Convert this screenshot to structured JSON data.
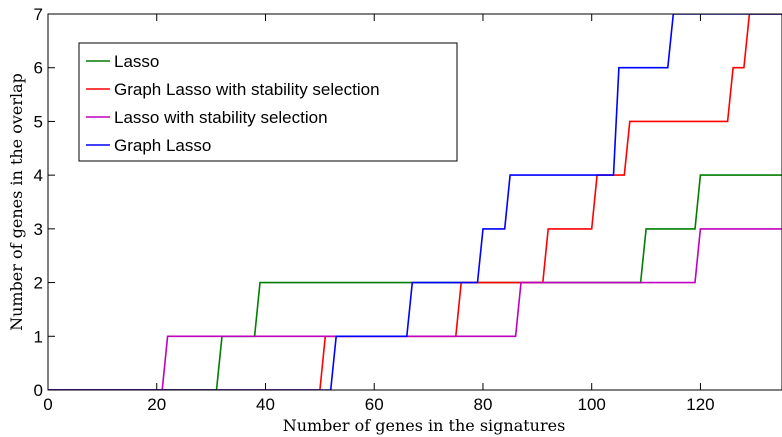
{
  "chart_data": {
    "type": "line",
    "title": "",
    "xlabel": "Number of genes in the signatures",
    "ylabel": "Number of genes in the overlap",
    "xlim": [
      0,
      135
    ],
    "ylim": [
      0,
      7
    ],
    "xticks": [
      0,
      20,
      40,
      60,
      80,
      100,
      120
    ],
    "yticks": [
      0,
      1,
      2,
      3,
      4,
      5,
      6,
      7
    ],
    "grid": false,
    "legend_position": "top-left",
    "series": [
      {
        "name": "Lasso",
        "color": "#007f00",
        "step": true,
        "points": [
          [
            0,
            0
          ],
          [
            31,
            0
          ],
          [
            32,
            1
          ],
          [
            38,
            1
          ],
          [
            39,
            2
          ],
          [
            109,
            2
          ],
          [
            110,
            3
          ],
          [
            119,
            3
          ],
          [
            120,
            4
          ],
          [
            135,
            4
          ]
        ]
      },
      {
        "name": "Graph Lasso with stability selection",
        "color": "#ff0000",
        "step": true,
        "points": [
          [
            0,
            0
          ],
          [
            50,
            0
          ],
          [
            51,
            1
          ],
          [
            75,
            1
          ],
          [
            76,
            2
          ],
          [
            91,
            2
          ],
          [
            92,
            3
          ],
          [
            100,
            3
          ],
          [
            101,
            4
          ],
          [
            106,
            4
          ],
          [
            107,
            5
          ],
          [
            125,
            5
          ],
          [
            126,
            6
          ],
          [
            128,
            6
          ],
          [
            129,
            7
          ],
          [
            135,
            7
          ]
        ]
      },
      {
        "name": "Lasso with stability selection",
        "color": "#bf00bf",
        "step": true,
        "points": [
          [
            0,
            0
          ],
          [
            21,
            0
          ],
          [
            22,
            1
          ],
          [
            86,
            1
          ],
          [
            87,
            2
          ],
          [
            119,
            2
          ],
          [
            120,
            3
          ],
          [
            135,
            3
          ]
        ]
      },
      {
        "name": "Graph Lasso",
        "color": "#0000ff",
        "step": true,
        "points": [
          [
            0,
            0
          ],
          [
            52,
            0
          ],
          [
            53,
            1
          ],
          [
            66,
            1
          ],
          [
            67,
            2
          ],
          [
            79,
            2
          ],
          [
            80,
            3
          ],
          [
            84,
            3
          ],
          [
            85,
            4
          ],
          [
            104,
            4
          ],
          [
            105,
            6
          ],
          [
            114,
            6
          ],
          [
            115,
            7
          ],
          [
            135,
            7
          ]
        ]
      }
    ]
  }
}
